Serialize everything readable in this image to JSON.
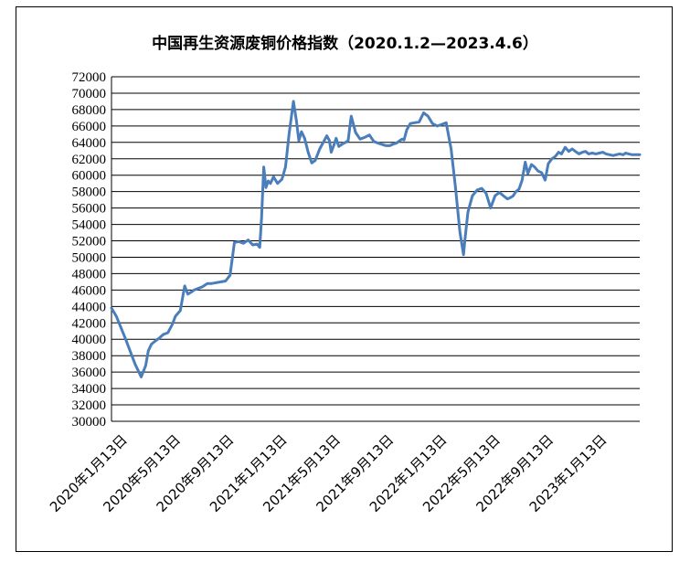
{
  "chart_data": {
    "type": "line",
    "title": "中国再生资源废铜价格指数（2020.1.2—2023.4.6）",
    "xlabel": "",
    "ylabel": "",
    "ylim": [
      30000,
      72000
    ],
    "y_ticks": [
      30000,
      32000,
      34000,
      36000,
      38000,
      40000,
      42000,
      44000,
      46000,
      48000,
      50000,
      52000,
      54000,
      56000,
      58000,
      60000,
      62000,
      64000,
      66000,
      68000,
      70000,
      72000
    ],
    "x_tick_labels": [
      "2020年1月13日",
      "2020年5月13日",
      "2020年9月13日",
      "2021年1月13日",
      "2021年5月13日",
      "2021年9月13日",
      "2022年1月13日",
      "2022年5月13日",
      "2022年9月13日",
      "2023年1月13日"
    ],
    "x_range": [
      "2020-01-02",
      "2023-04-06"
    ],
    "grid": "horizontal",
    "line_color": "#4A7EBB",
    "series": [
      {
        "x": [
          "2020-01-02",
          "2020-01-13",
          "2020-02-03",
          "2020-02-24",
          "2020-03-09",
          "2020-03-19",
          "2020-03-25",
          "2020-04-01",
          "2020-04-10",
          "2020-04-20",
          "2020-04-28",
          "2020-05-08",
          "2020-05-18",
          "2020-05-25",
          "2020-06-05",
          "2020-06-15",
          "2020-06-22",
          "2020-07-01",
          "2020-07-06",
          "2020-07-15",
          "2020-07-25",
          "2020-08-05",
          "2020-08-15",
          "2020-08-25",
          "2020-09-05",
          "2020-09-15",
          "2020-09-25",
          "2020-10-05",
          "2020-10-15",
          "2020-10-25",
          "2020-11-05",
          "2020-11-15",
          "2020-11-25",
          "2020-12-01",
          "2020-12-05",
          "2020-12-10",
          "2020-12-15",
          "2020-12-20",
          "2020-12-25",
          "2021-01-01",
          "2021-01-10",
          "2021-01-20",
          "2021-01-28",
          "2021-02-05",
          "2021-02-15",
          "2021-02-22",
          "2021-02-27",
          "2021-03-05",
          "2021-03-12",
          "2021-03-20",
          "2021-03-28",
          "2021-04-05",
          "2021-04-15",
          "2021-04-25",
          "2021-05-01",
          "2021-05-07",
          "2021-05-11",
          "2021-05-18",
          "2021-05-22",
          "2021-05-28",
          "2021-06-05",
          "2021-06-12",
          "2021-06-18",
          "2021-06-25",
          "2021-07-05",
          "2021-07-15",
          "2021-07-25",
          "2021-08-05",
          "2021-08-15",
          "2021-08-25",
          "2021-09-05",
          "2021-09-12",
          "2021-09-20",
          "2021-09-28",
          "2021-10-05",
          "2021-10-12",
          "2021-10-18",
          "2021-10-22",
          "2021-10-28",
          "2021-11-05",
          "2021-11-15",
          "2021-11-25",
          "2021-12-05",
          "2021-12-15",
          "2021-12-25",
          "2022-01-05",
          "2022-01-15",
          "2022-01-25",
          "2022-02-05",
          "2022-02-15",
          "2022-02-25",
          "2022-03-05",
          "2022-03-08",
          "2022-03-15",
          "2022-03-25",
          "2022-04-05",
          "2022-04-15",
          "2022-04-25",
          "2022-05-05",
          "2022-05-15",
          "2022-05-25",
          "2022-06-05",
          "2022-06-12",
          "2022-06-20",
          "2022-06-25",
          "2022-07-01",
          "2022-07-08",
          "2022-07-15",
          "2022-07-22",
          "2022-07-28",
          "2022-08-05",
          "2022-08-12",
          "2022-08-20",
          "2022-08-28",
          "2022-09-05",
          "2022-09-12",
          "2022-09-20",
          "2022-09-28",
          "2022-10-05",
          "2022-10-12",
          "2022-10-20",
          "2022-10-28",
          "2022-11-05",
          "2022-11-12",
          "2022-11-20",
          "2022-11-28",
          "2022-12-05",
          "2022-12-12",
          "2022-12-20",
          "2022-12-28",
          "2023-01-05",
          "2023-01-13",
          "2023-01-20",
          "2023-01-28",
          "2023-02-05",
          "2023-02-12",
          "2023-02-20",
          "2023-02-28",
          "2023-03-05",
          "2023-03-12",
          "2023-03-20",
          "2023-03-28",
          "2023-04-06"
        ],
        "y": [
          43800,
          42800,
          40000,
          37000,
          35400,
          36800,
          38600,
          39400,
          39800,
          40200,
          40600,
          40800,
          41800,
          42800,
          43500,
          46500,
          45500,
          45800,
          46000,
          46200,
          46400,
          46800,
          46800,
          46900,
          47000,
          47100,
          47800,
          51800,
          51900,
          51700,
          52100,
          51500,
          51600,
          51200,
          54800,
          61000,
          58500,
          59300,
          59000,
          59800,
          59000,
          59500,
          61000,
          65000,
          69000,
          66500,
          64200,
          65300,
          64500,
          62800,
          61500,
          61800,
          63200,
          64200,
          64800,
          64200,
          62800,
          63800,
          64500,
          63500,
          63800,
          64000,
          64200,
          67200,
          65200,
          64400,
          64600,
          64900,
          64100,
          63900,
          63700,
          63600,
          63600,
          63800,
          63900,
          64200,
          64400,
          64300,
          65500,
          66300,
          66400,
          66500,
          67600,
          67200,
          66300,
          66000,
          66200,
          66400,
          63200,
          58500,
          53000,
          50300,
          52000,
          55500,
          57500,
          58200,
          58400,
          57800,
          56000,
          57500,
          57900,
          57400,
          57100,
          57300,
          57500,
          58000,
          58300,
          59400,
          61600,
          60200,
          61300,
          61000,
          60500,
          60300,
          59400,
          61400,
          62000,
          62300,
          62800,
          62600,
          63400,
          62900,
          63200,
          62900,
          62600,
          62800,
          62900,
          62600,
          62700,
          62600,
          62700,
          62800,
          62600,
          62500,
          62400,
          62500,
          62600,
          62500,
          62700,
          62600,
          62500,
          62500,
          62500
        ]
      }
    ]
  }
}
